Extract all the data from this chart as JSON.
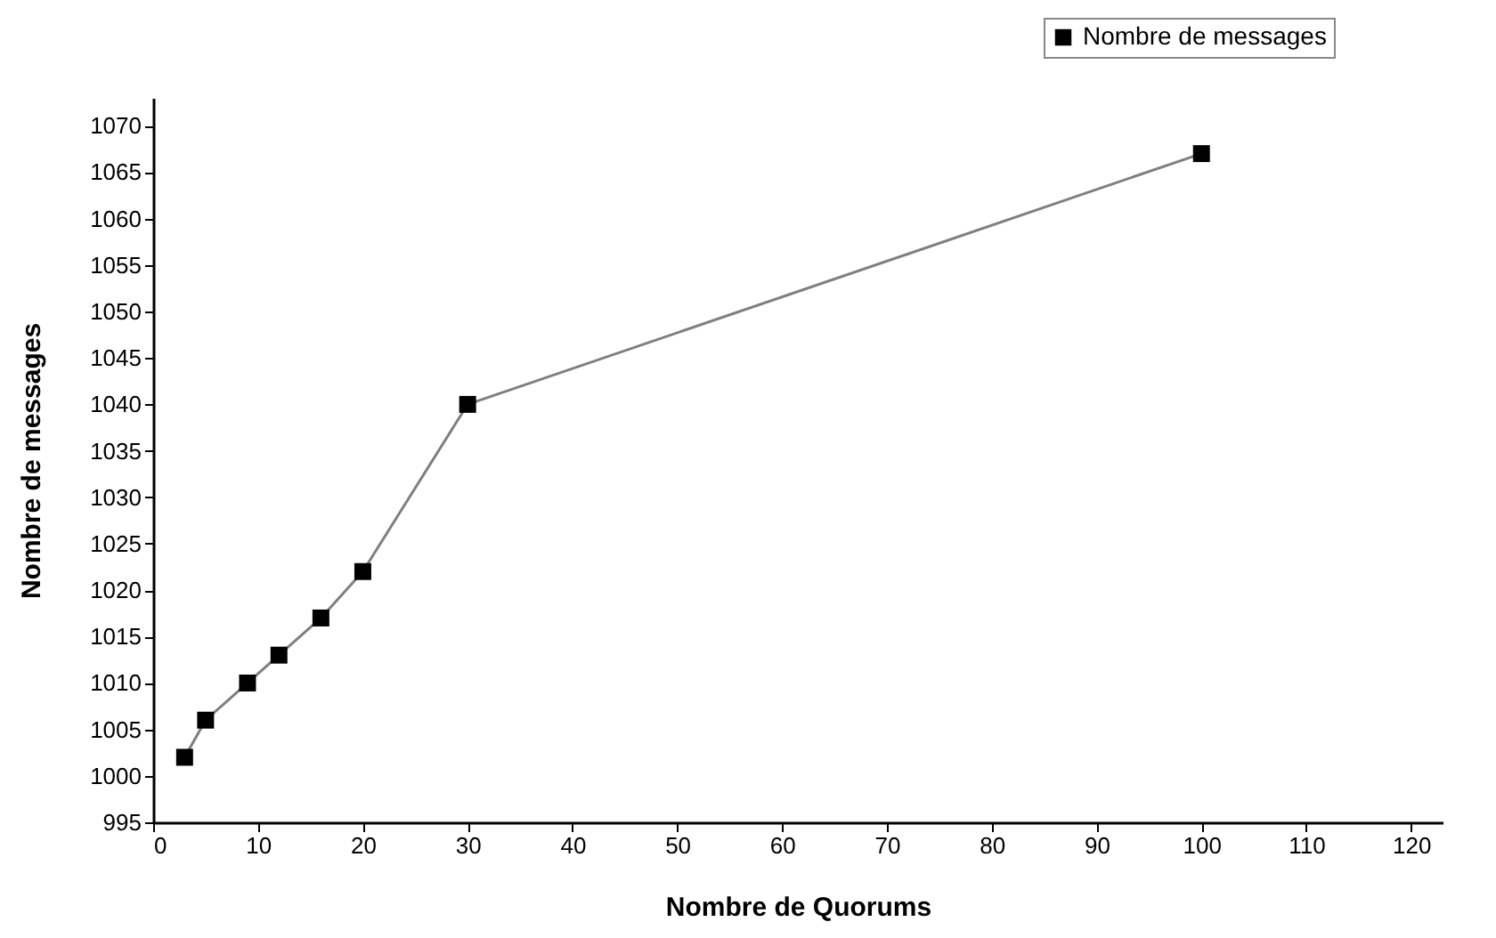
{
  "chart_data": {
    "type": "line",
    "xlabel": "Nombre de Quorums",
    "ylabel": "Nombre de messages",
    "x": [
      3,
      5,
      9,
      12,
      16,
      20,
      30,
      100
    ],
    "series": [
      {
        "name": "Nombre de messages",
        "color": "#000000",
        "values": [
          1002,
          1006,
          1010,
          1013,
          1017,
          1022,
          1040,
          1067
        ]
      }
    ],
    "xlim": [
      0,
      123
    ],
    "xticks": [
      0,
      10,
      20,
      30,
      40,
      50,
      60,
      70,
      80,
      90,
      100,
      110,
      120
    ],
    "ylim": [
      995,
      1073
    ],
    "yticks": [
      995,
      1000,
      1005,
      1010,
      1015,
      1020,
      1025,
      1030,
      1035,
      1040,
      1045,
      1050,
      1055,
      1060,
      1065,
      1070
    ],
    "marker": "square",
    "line_style": "solid",
    "grid": false,
    "legend": "top right"
  }
}
